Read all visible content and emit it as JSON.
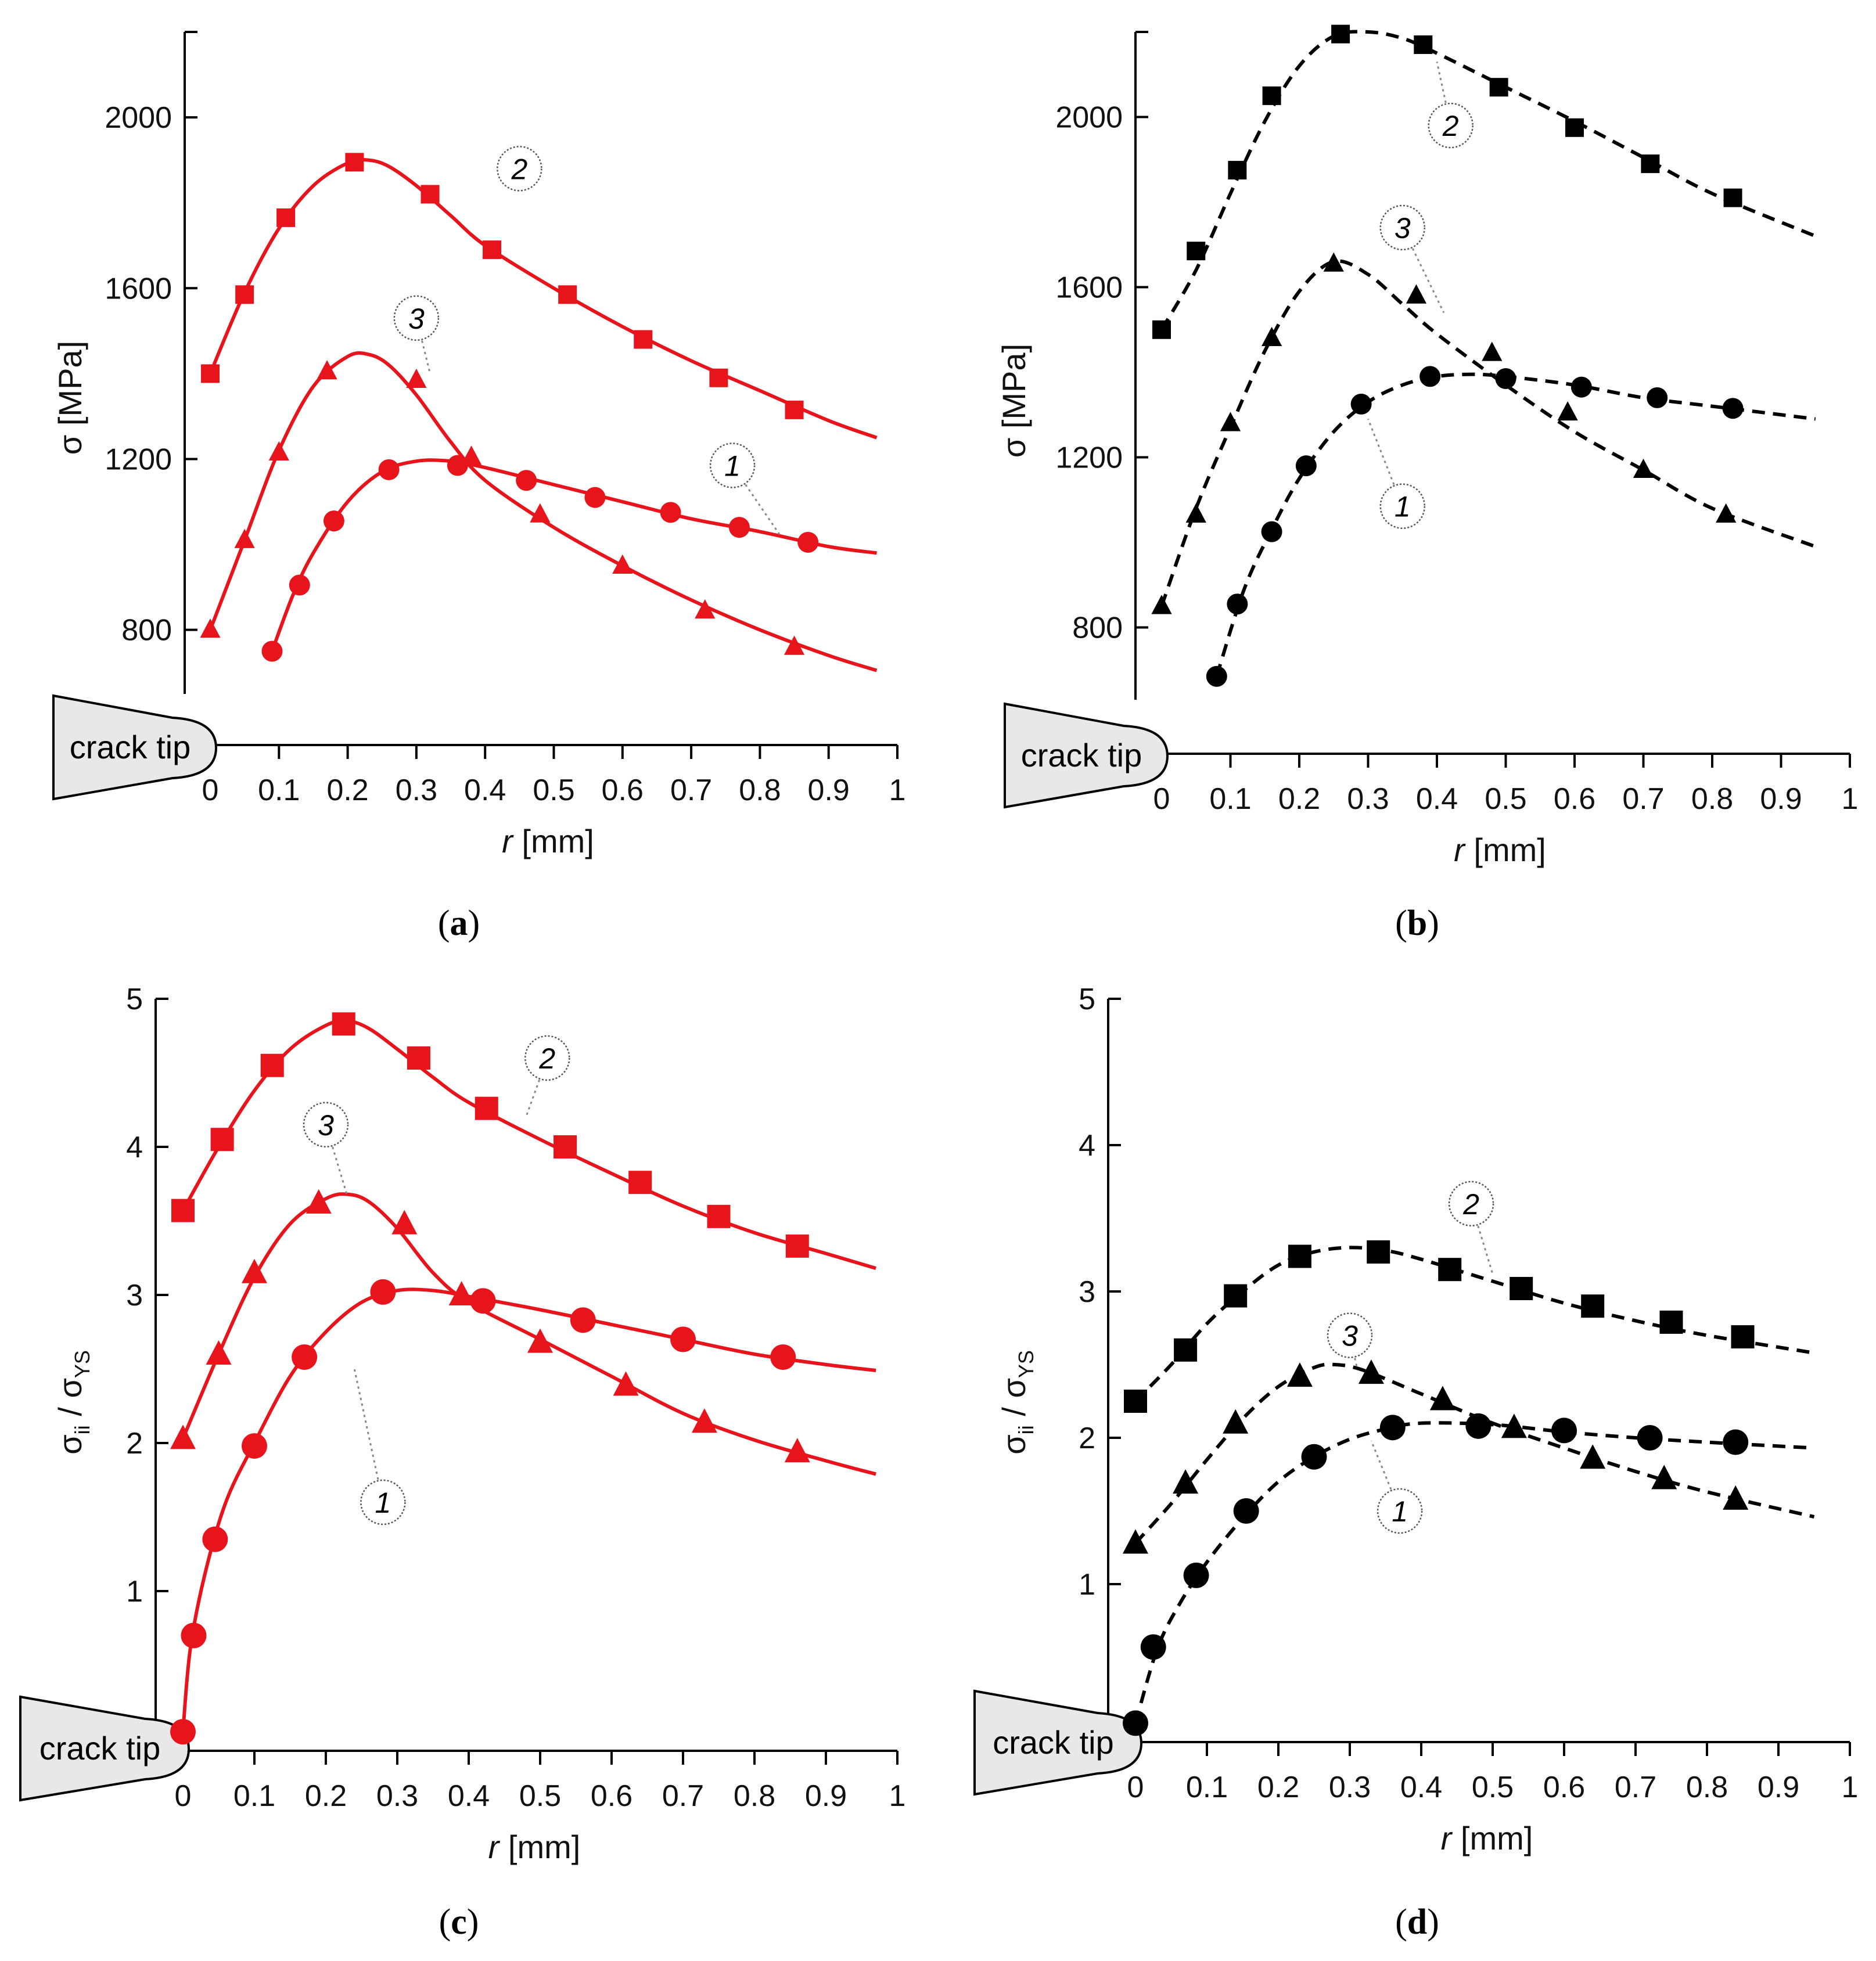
{
  "figure": {
    "crack_label": "crack tip",
    "x_tick_labels": [
      "0",
      "0.1",
      "0.2",
      "0.3",
      "0.4",
      "0.5",
      "0.6",
      "0.7",
      "0.8",
      "0.9",
      "1"
    ]
  },
  "chart_data": [
    {
      "panel": "a",
      "type": "line",
      "caption_text": "(a)",
      "ylabel_main": "σ [MPa]",
      "ylabel_sub": "",
      "ylabel_tail": "",
      "xlabel_italic": "r",
      "xlabel_rest": " [mm]",
      "xlim": [
        0,
        1
      ],
      "ylim": [
        650,
        2200
      ],
      "y_ticks": [
        800,
        1200,
        1600,
        2000
      ],
      "y_tick_labels": [
        "800",
        "1200",
        "1600",
        "2000"
      ],
      "color": "#e8141c",
      "line_style": "solid",
      "series": [
        {
          "name": "1",
          "marker": "circle",
          "x": [
            0.09,
            0.13,
            0.18,
            0.26,
            0.36,
            0.46,
            0.56,
            0.67,
            0.77,
            0.87
          ],
          "y": [
            750,
            905,
            1055,
            1175,
            1185,
            1150,
            1110,
            1075,
            1040,
            1005
          ],
          "curve_x": [
            0.09,
            0.12,
            0.15,
            0.2,
            0.25,
            0.3,
            0.35,
            0.4,
            0.5,
            0.6,
            0.7,
            0.8,
            0.9,
            0.97
          ],
          "curve_y": [
            750,
            880,
            980,
            1100,
            1170,
            1195,
            1195,
            1180,
            1140,
            1100,
            1060,
            1030,
            995,
            980
          ],
          "callout": "1",
          "callout_x": 0.76,
          "callout_y": 1185,
          "leader_x": 0.83,
          "leader_y": 1020
        },
        {
          "name": "2",
          "marker": "square",
          "x": [
            0,
            0.05,
            0.11,
            0.21,
            0.32,
            0.41,
            0.52,
            0.63,
            0.74,
            0.85
          ],
          "y": [
            1400,
            1585,
            1765,
            1895,
            1820,
            1690,
            1585,
            1480,
            1390,
            1315
          ],
          "curve_x": [
            0,
            0.05,
            0.1,
            0.15,
            0.2,
            0.23,
            0.26,
            0.3,
            0.35,
            0.4,
            0.5,
            0.6,
            0.7,
            0.8,
            0.9,
            0.97
          ],
          "curve_y": [
            1400,
            1590,
            1740,
            1840,
            1893,
            1900,
            1885,
            1840,
            1770,
            1700,
            1600,
            1510,
            1430,
            1360,
            1290,
            1250
          ],
          "callout": "2",
          "callout_x": 0.45,
          "callout_y": 1880
        },
        {
          "name": "3",
          "marker": "triangle",
          "x": [
            0,
            0.05,
            0.1,
            0.17,
            0.3,
            0.38,
            0.48,
            0.6,
            0.72,
            0.85
          ],
          "y": [
            800,
            1010,
            1215,
            1405,
            1385,
            1205,
            1070,
            950,
            845,
            760
          ],
          "curve_x": [
            0,
            0.05,
            0.1,
            0.15,
            0.2,
            0.23,
            0.26,
            0.3,
            0.35,
            0.4,
            0.5,
            0.6,
            0.7,
            0.8,
            0.9,
            0.97
          ],
          "curve_y": [
            800,
            1010,
            1220,
            1370,
            1440,
            1445,
            1420,
            1350,
            1240,
            1150,
            1040,
            950,
            870,
            800,
            740,
            705
          ],
          "callout": "3",
          "callout_x": 0.3,
          "callout_y": 1530,
          "leader_x": 0.32,
          "leader_y": 1400
        }
      ]
    },
    {
      "panel": "b",
      "type": "line",
      "caption_text": "(b)",
      "ylabel_main": "σ [MPa]",
      "ylabel_sub": "",
      "ylabel_tail": "",
      "xlabel_italic": "r",
      "xlabel_rest": " [mm]",
      "xlim": [
        0,
        1
      ],
      "ylim": [
        630,
        2200
      ],
      "y_ticks": [
        800,
        1200,
        1600,
        2000
      ],
      "y_tick_labels": [
        "800",
        "1200",
        "1600",
        "2000"
      ],
      "color": "#000000",
      "line_style": "dashed",
      "series": [
        {
          "name": "1",
          "marker": "circle",
          "x": [
            0.08,
            0.11,
            0.16,
            0.21,
            0.29,
            0.39,
            0.5,
            0.61,
            0.72,
            0.83
          ],
          "y": [
            685,
            855,
            1025,
            1180,
            1325,
            1390,
            1385,
            1365,
            1340,
            1315
          ],
          "curve_x": [
            0.08,
            0.12,
            0.16,
            0.2,
            0.25,
            0.3,
            0.35,
            0.4,
            0.45,
            0.5,
            0.6,
            0.7,
            0.8,
            0.95
          ],
          "curve_y": [
            685,
            890,
            1030,
            1150,
            1260,
            1330,
            1370,
            1390,
            1395,
            1390,
            1370,
            1340,
            1320,
            1290
          ],
          "callout": "1",
          "callout_x": 0.35,
          "callout_y": 1085,
          "leader_x": 0.3,
          "leader_y": 1290
        },
        {
          "name": "2",
          "marker": "square",
          "x": [
            0,
            0.05,
            0.11,
            0.16,
            0.26,
            0.38,
            0.49,
            0.6,
            0.71,
            0.83
          ],
          "y": [
            1500,
            1685,
            1875,
            2050,
            2195,
            2170,
            2070,
            1975,
            1890,
            1810
          ],
          "curve_x": [
            0,
            0.05,
            0.1,
            0.15,
            0.2,
            0.25,
            0.3,
            0.35,
            0.4,
            0.5,
            0.6,
            0.7,
            0.8,
            0.95
          ],
          "curve_y": [
            1500,
            1640,
            1820,
            1990,
            2120,
            2190,
            2200,
            2185,
            2150,
            2070,
            1990,
            1905,
            1820,
            1720
          ],
          "callout": "2",
          "callout_x": 0.42,
          "callout_y": 1980,
          "leader_x": 0.4,
          "leader_y": 2130
        },
        {
          "name": "3",
          "marker": "triangle",
          "x": [
            0,
            0.05,
            0.1,
            0.16,
            0.25,
            0.37,
            0.48,
            0.59,
            0.7,
            0.82
          ],
          "y": [
            850,
            1065,
            1280,
            1480,
            1655,
            1580,
            1445,
            1305,
            1170,
            1065
          ],
          "curve_x": [
            0,
            0.05,
            0.1,
            0.15,
            0.2,
            0.25,
            0.3,
            0.35,
            0.4,
            0.5,
            0.6,
            0.7,
            0.8,
            0.95
          ],
          "curve_y": [
            850,
            1080,
            1270,
            1450,
            1590,
            1660,
            1630,
            1560,
            1490,
            1370,
            1260,
            1170,
            1080,
            990
          ],
          "callout": "3",
          "callout_x": 0.35,
          "callout_y": 1740,
          "leader_x": 0.41,
          "leader_y": 1540
        }
      ]
    },
    {
      "panel": "c",
      "type": "line",
      "caption_text": "(c)",
      "ylabel_main": "σ",
      "ylabel_sub": "ii",
      "ylabel_tail": " / σ",
      "ylabel_sub2": "YS",
      "xlabel_italic": "r",
      "xlabel_rest": " [mm]",
      "xlim": [
        0,
        1
      ],
      "ylim": [
        0,
        5
      ],
      "y_ticks": [
        1,
        2,
        3,
        4,
        5
      ],
      "y_tick_labels": [
        "1",
        "2",
        "3",
        "4",
        "5"
      ],
      "color": "#e8141c",
      "line_style": "solid",
      "series": [
        {
          "name": "1",
          "marker": "circle",
          "x": [
            0,
            0.015,
            0.045,
            0.1,
            0.17,
            0.28,
            0.42,
            0.56,
            0.7,
            0.84
          ],
          "y": [
            0.05,
            0.7,
            1.35,
            1.98,
            2.58,
            3.02,
            2.96,
            2.83,
            2.7,
            2.58
          ],
          "curve_x": [
            0,
            0.01,
            0.03,
            0.06,
            0.1,
            0.15,
            0.2,
            0.25,
            0.3,
            0.35,
            0.4,
            0.5,
            0.6,
            0.7,
            0.8,
            0.9,
            0.97
          ],
          "curve_y": [
            0.05,
            0.6,
            1.1,
            1.6,
            2.0,
            2.45,
            2.75,
            2.95,
            3.03,
            3.03,
            2.99,
            2.9,
            2.8,
            2.7,
            2.6,
            2.53,
            2.49
          ],
          "callout": "1",
          "callout_x": 0.28,
          "callout_y": 1.6,
          "leader_x": 0.24,
          "leader_y": 2.5
        },
        {
          "name": "2",
          "marker": "square",
          "x": [
            0,
            0.055,
            0.125,
            0.225,
            0.33,
            0.425,
            0.535,
            0.64,
            0.75,
            0.86
          ],
          "y": [
            3.57,
            4.05,
            4.55,
            4.83,
            4.6,
            4.26,
            4.0,
            3.76,
            3.53,
            3.33
          ],
          "curve_x": [
            0,
            0.05,
            0.1,
            0.15,
            0.2,
            0.23,
            0.26,
            0.3,
            0.35,
            0.4,
            0.5,
            0.6,
            0.7,
            0.8,
            0.9,
            0.97
          ],
          "curve_y": [
            3.57,
            4.0,
            4.38,
            4.66,
            4.82,
            4.85,
            4.8,
            4.66,
            4.47,
            4.3,
            4.05,
            3.82,
            3.6,
            3.42,
            3.28,
            3.18
          ],
          "callout": "2",
          "callout_x": 0.51,
          "callout_y": 4.6,
          "leader_x": 0.48,
          "leader_y": 4.2
        },
        {
          "name": "3",
          "marker": "triangle",
          "x": [
            0,
            0.05,
            0.1,
            0.19,
            0.31,
            0.39,
            0.5,
            0.62,
            0.73,
            0.86
          ],
          "y": [
            2.03,
            2.6,
            3.15,
            3.62,
            3.48,
            3.0,
            2.68,
            2.39,
            2.14,
            1.94
          ],
          "curve_x": [
            0,
            0.05,
            0.1,
            0.15,
            0.2,
            0.23,
            0.26,
            0.3,
            0.35,
            0.4,
            0.5,
            0.6,
            0.7,
            0.8,
            0.9,
            0.97
          ],
          "curve_y": [
            2.03,
            2.6,
            3.12,
            3.48,
            3.65,
            3.68,
            3.63,
            3.45,
            3.15,
            2.95,
            2.7,
            2.45,
            2.2,
            2.02,
            1.88,
            1.79
          ],
          "callout": "3",
          "callout_x": 0.2,
          "callout_y": 4.15,
          "leader_x": 0.23,
          "leader_y": 3.67
        }
      ]
    },
    {
      "panel": "d",
      "type": "line",
      "caption_text": "(d)",
      "ylabel_main": "σ",
      "ylabel_sub": "ii",
      "ylabel_tail": " / σ",
      "ylabel_sub2": "YS",
      "xlabel_italic": "r",
      "xlabel_rest": " [mm]",
      "xlim": [
        0,
        1
      ],
      "ylim": [
        0,
        5
      ],
      "y_ticks": [
        1,
        2,
        3,
        4,
        5
      ],
      "y_tick_labels": [
        "1",
        "2",
        "3",
        "4",
        "5"
      ],
      "color": "#000000",
      "line_style": "dashed",
      "series": [
        {
          "name": "1",
          "marker": "circle",
          "x": [
            0,
            0.025,
            0.085,
            0.155,
            0.25,
            0.36,
            0.48,
            0.6,
            0.72,
            0.84
          ],
          "y": [
            0.05,
            0.57,
            1.06,
            1.5,
            1.87,
            2.07,
            2.08,
            2.05,
            2.0,
            1.97
          ],
          "curve_x": [
            0,
            0.03,
            0.06,
            0.1,
            0.15,
            0.2,
            0.25,
            0.3,
            0.35,
            0.4,
            0.5,
            0.6,
            0.7,
            0.8,
            0.95
          ],
          "curve_y": [
            0.05,
            0.55,
            0.85,
            1.15,
            1.45,
            1.7,
            1.87,
            1.99,
            2.06,
            2.1,
            2.09,
            2.04,
            2.0,
            1.97,
            1.93
          ],
          "callout": "1",
          "callout_x": 0.37,
          "callout_y": 1.5,
          "leader_x": 0.33,
          "leader_y": 1.98
        },
        {
          "name": "2",
          "marker": "square",
          "x": [
            0,
            0.07,
            0.14,
            0.23,
            0.34,
            0.44,
            0.54,
            0.64,
            0.75,
            0.85
          ],
          "y": [
            2.25,
            2.6,
            2.97,
            3.24,
            3.27,
            3.15,
            3.02,
            2.9,
            2.79,
            2.69
          ],
          "curve_x": [
            0,
            0.05,
            0.1,
            0.15,
            0.2,
            0.25,
            0.3,
            0.35,
            0.4,
            0.5,
            0.6,
            0.7,
            0.8,
            0.95
          ],
          "curve_y": [
            2.25,
            2.5,
            2.78,
            3.0,
            3.18,
            3.27,
            3.3,
            3.28,
            3.22,
            3.07,
            2.92,
            2.8,
            2.7,
            2.58
          ],
          "callout": "2",
          "callout_x": 0.47,
          "callout_y": 3.6,
          "leader_x": 0.5,
          "leader_y": 3.12
        },
        {
          "name": "3",
          "marker": "triangle",
          "x": [
            0,
            0.07,
            0.14,
            0.23,
            0.33,
            0.43,
            0.53,
            0.64,
            0.74,
            0.84
          ],
          "y": [
            1.28,
            1.69,
            2.1,
            2.42,
            2.44,
            2.26,
            2.07,
            1.86,
            1.72,
            1.58
          ],
          "curve_x": [
            0,
            0.05,
            0.1,
            0.15,
            0.2,
            0.25,
            0.28,
            0.32,
            0.4,
            0.5,
            0.6,
            0.7,
            0.8,
            0.95
          ],
          "curve_y": [
            1.28,
            1.55,
            1.85,
            2.13,
            2.35,
            2.48,
            2.5,
            2.46,
            2.3,
            2.1,
            1.93,
            1.77,
            1.63,
            1.46
          ],
          "callout": "3",
          "callout_x": 0.3,
          "callout_y": 2.7,
          "leader_x": 0.31,
          "leader_y": 2.48
        }
      ]
    }
  ]
}
